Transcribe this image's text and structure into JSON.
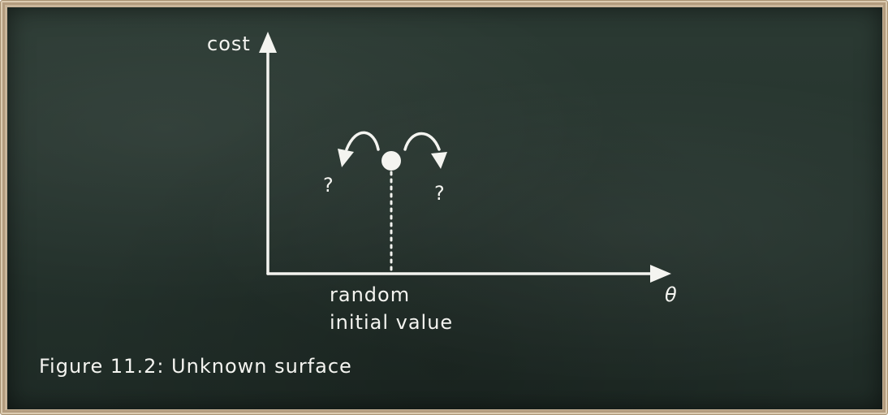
{
  "diagram": {
    "y_axis_label": "cost",
    "x_axis_label": "θ",
    "point_label_line1": "random",
    "point_label_line2": "initial value",
    "left_question": "?",
    "right_question": "?",
    "caption": "Figure 11.2: Unknown surface"
  },
  "colors": {
    "chalk": "#f4f4f0",
    "board": "#26342e",
    "frame": "#c9b59a"
  }
}
